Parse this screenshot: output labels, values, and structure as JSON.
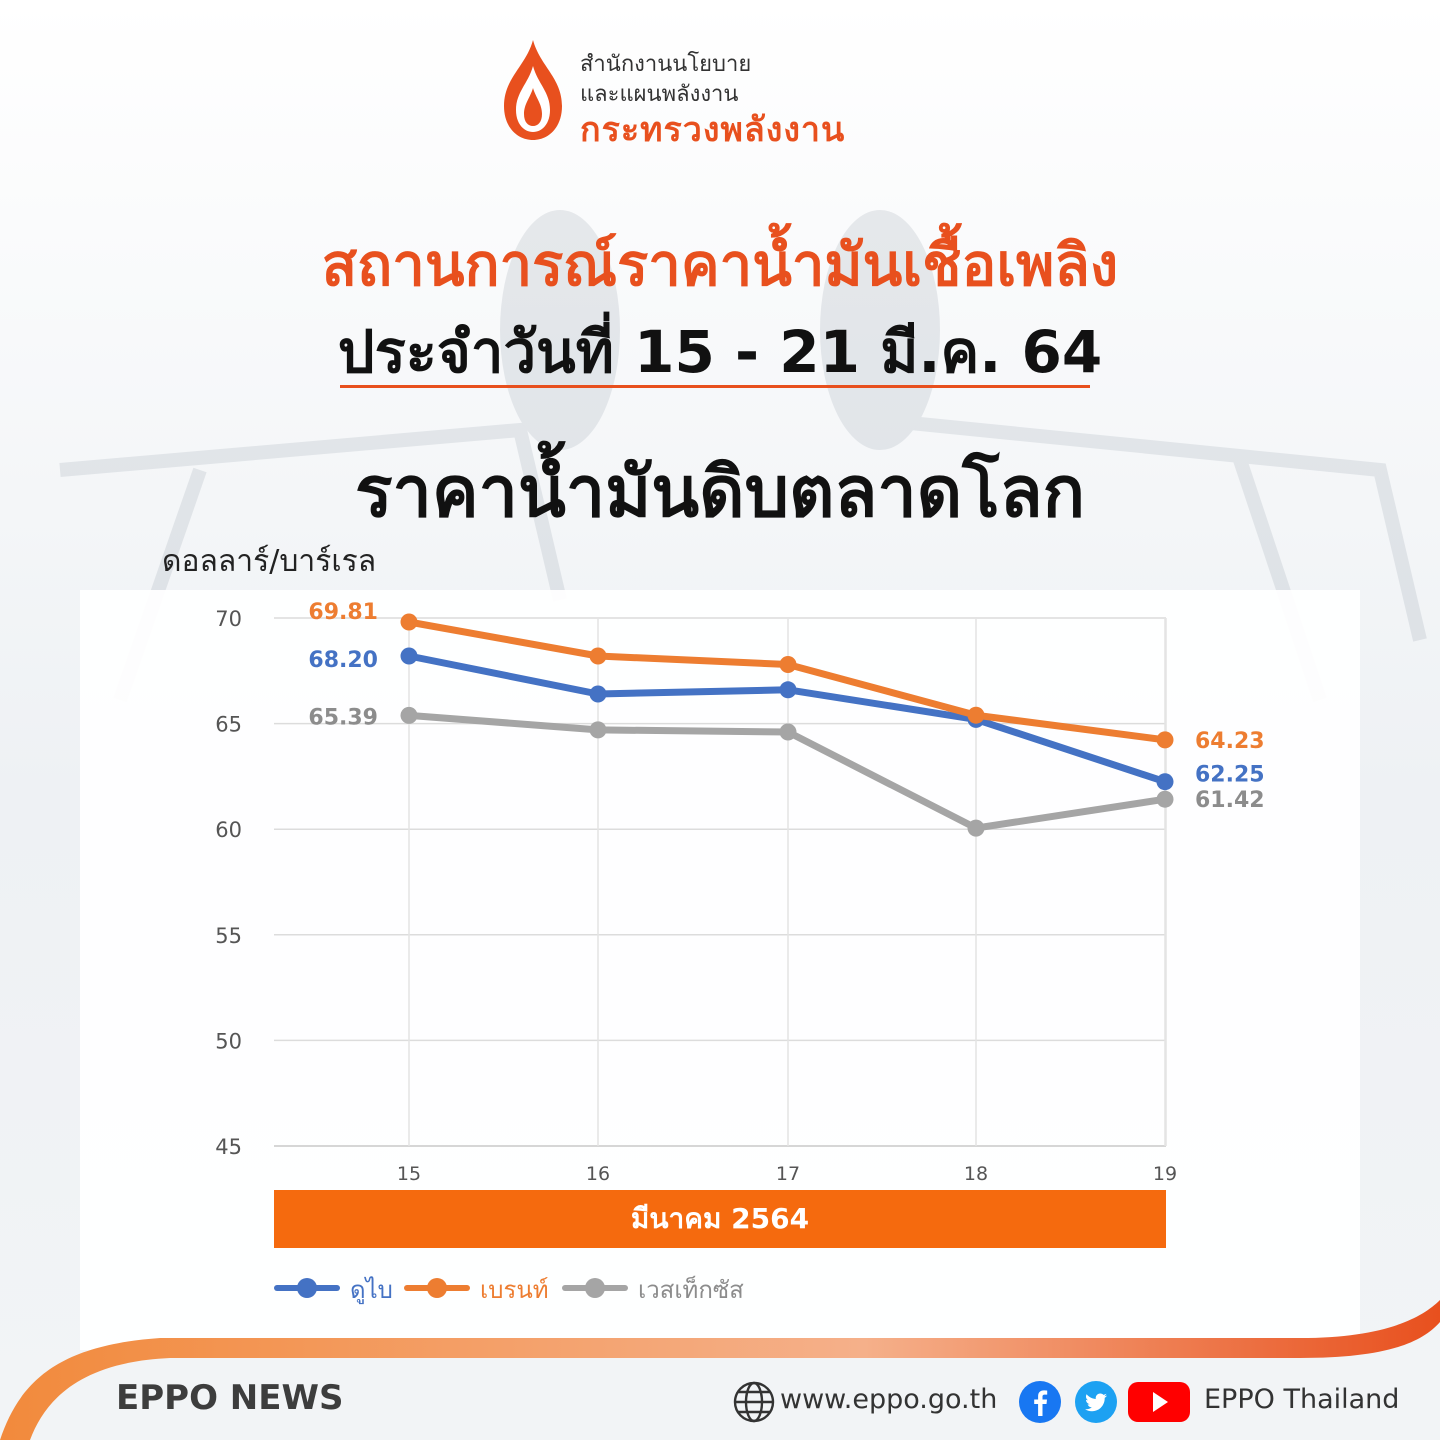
{
  "header": {
    "org_line1": "สำนักงานนโยบาย",
    "org_line2": "และแผนพลังงาน",
    "ministry": "กระทรวงพลังงาน"
  },
  "titles": {
    "main": "สถานการณ์ราคาน้ำมันเชื้อเพลิง",
    "date_range": "ประจำวันที่ 15 - 21 มี.ค. 64",
    "subject": "ราคาน้ำมันดิบตลาดโลก"
  },
  "chart_data": {
    "type": "line",
    "title": "ราคาน้ำมันดิบตลาดโลก",
    "ylabel": "ดอลลาร์/บาร์เรล",
    "xlabel": "มีนาคม 2564",
    "x": [
      "15",
      "16",
      "17",
      "18",
      "19"
    ],
    "ylim": [
      45,
      70
    ],
    "yticks": [
      70,
      65,
      60,
      55,
      50,
      45
    ],
    "grid": true,
    "legend_position": "bottom-left",
    "series": [
      {
        "name": "ดูไบ",
        "color": "#4472c4",
        "values": [
          68.2,
          66.4,
          66.6,
          65.2,
          62.25
        ],
        "labels": {
          "first": "68.20",
          "last": "62.25"
        }
      },
      {
        "name": "เบรนท์",
        "color": "#ed7d31",
        "values": [
          69.81,
          68.2,
          67.8,
          65.4,
          64.23
        ],
        "labels": {
          "first": "69.81",
          "last": "64.23"
        }
      },
      {
        "name": "เวสเท็กซัส",
        "color": "#a5a5a5",
        "values": [
          65.39,
          64.7,
          64.6,
          60.05,
          61.42
        ],
        "labels": {
          "first": "65.39",
          "last": "61.42"
        }
      }
    ]
  },
  "footer": {
    "news": "EPPO NEWS",
    "website": "www.eppo.go.th",
    "handle": "EPPO Thailand",
    "accent": "#e8501e"
  }
}
